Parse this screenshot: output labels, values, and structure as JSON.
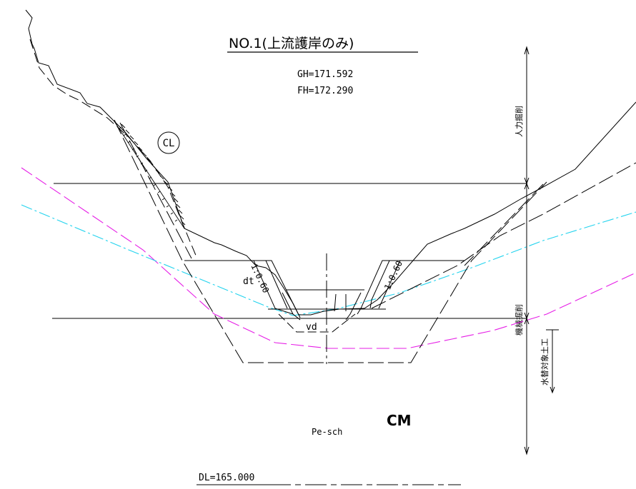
{
  "drawing": {
    "title": "NO.1(上流護岸のみ)",
    "gh": "GH=171.592",
    "fh": "FH=172.290",
    "cl": "CL",
    "dt": "dt",
    "vd": "vd",
    "slope_left": "1:0.60",
    "slope_right": "1:0.60",
    "cm": "CM",
    "pe_sch": "Pe-sch",
    "dl": "DL=165.000"
  },
  "side_labels": {
    "manual": "人力掘削",
    "machine": "機械掘削",
    "replace": "水替対象土工"
  },
  "colors": {
    "line": "#000000",
    "cyan": "#22d3ee",
    "magenta": "#e61ee6"
  }
}
